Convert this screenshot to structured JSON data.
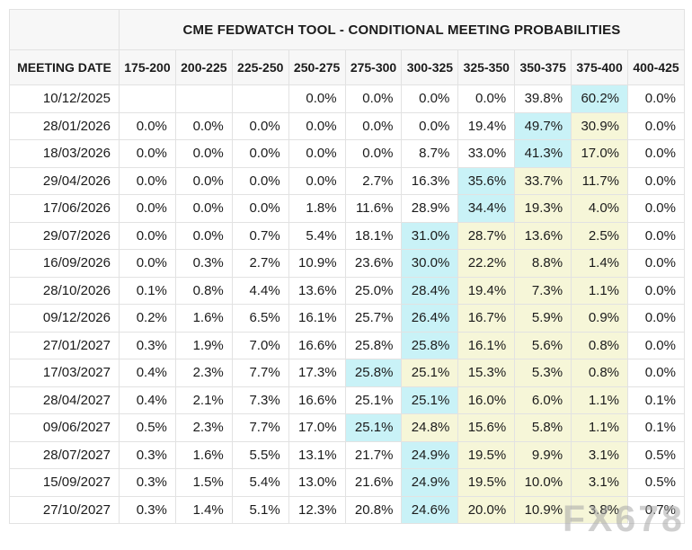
{
  "chart_data": {
    "type": "table",
    "title": "CME FEDWATCH TOOL - CONDITIONAL MEETING PROBABILITIES",
    "columns": [
      "MEETING DATE",
      "175-200",
      "200-225",
      "225-250",
      "250-275",
      "275-300",
      "300-325",
      "325-350",
      "350-375",
      "375-400",
      "400-425"
    ],
    "rows": [
      {
        "date": "10/12/2025",
        "values": [
          "",
          "",
          "",
          "0.0%",
          "0.0%",
          "0.0%",
          "0.0%",
          "39.8%",
          "60.2%",
          "0.0%"
        ],
        "cyan": [
          8
        ],
        "yellow": []
      },
      {
        "date": "28/01/2026",
        "values": [
          "0.0%",
          "0.0%",
          "0.0%",
          "0.0%",
          "0.0%",
          "0.0%",
          "19.4%",
          "49.7%",
          "30.9%",
          "0.0%"
        ],
        "cyan": [
          7
        ],
        "yellow": [
          8
        ]
      },
      {
        "date": "18/03/2026",
        "values": [
          "0.0%",
          "0.0%",
          "0.0%",
          "0.0%",
          "0.0%",
          "8.7%",
          "33.0%",
          "41.3%",
          "17.0%",
          "0.0%"
        ],
        "cyan": [
          7
        ],
        "yellow": [
          8
        ]
      },
      {
        "date": "29/04/2026",
        "values": [
          "0.0%",
          "0.0%",
          "0.0%",
          "0.0%",
          "2.7%",
          "16.3%",
          "35.6%",
          "33.7%",
          "11.7%",
          "0.0%"
        ],
        "cyan": [
          6
        ],
        "yellow": [
          7,
          8
        ]
      },
      {
        "date": "17/06/2026",
        "values": [
          "0.0%",
          "0.0%",
          "0.0%",
          "1.8%",
          "11.6%",
          "28.9%",
          "34.4%",
          "19.3%",
          "4.0%",
          "0.0%"
        ],
        "cyan": [
          6
        ],
        "yellow": [
          7,
          8
        ]
      },
      {
        "date": "29/07/2026",
        "values": [
          "0.0%",
          "0.0%",
          "0.7%",
          "5.4%",
          "18.1%",
          "31.0%",
          "28.7%",
          "13.6%",
          "2.5%",
          "0.0%"
        ],
        "cyan": [
          5
        ],
        "yellow": [
          6,
          7,
          8
        ]
      },
      {
        "date": "16/09/2026",
        "values": [
          "0.0%",
          "0.3%",
          "2.7%",
          "10.9%",
          "23.6%",
          "30.0%",
          "22.2%",
          "8.8%",
          "1.4%",
          "0.0%"
        ],
        "cyan": [
          5
        ],
        "yellow": [
          6,
          7,
          8
        ]
      },
      {
        "date": "28/10/2026",
        "values": [
          "0.1%",
          "0.8%",
          "4.4%",
          "13.6%",
          "25.0%",
          "28.4%",
          "19.4%",
          "7.3%",
          "1.1%",
          "0.0%"
        ],
        "cyan": [
          5
        ],
        "yellow": [
          6,
          7,
          8
        ]
      },
      {
        "date": "09/12/2026",
        "values": [
          "0.2%",
          "1.6%",
          "6.5%",
          "16.1%",
          "25.7%",
          "26.4%",
          "16.7%",
          "5.9%",
          "0.9%",
          "0.0%"
        ],
        "cyan": [
          5
        ],
        "yellow": [
          6,
          7,
          8
        ]
      },
      {
        "date": "27/01/2027",
        "values": [
          "0.3%",
          "1.9%",
          "7.0%",
          "16.6%",
          "25.8%",
          "25.8%",
          "16.1%",
          "5.6%",
          "0.8%",
          "0.0%"
        ],
        "cyan": [
          5
        ],
        "yellow": [
          6,
          7,
          8
        ]
      },
      {
        "date": "17/03/2027",
        "values": [
          "0.4%",
          "2.3%",
          "7.7%",
          "17.3%",
          "25.8%",
          "25.1%",
          "15.3%",
          "5.3%",
          "0.8%",
          "0.0%"
        ],
        "cyan": [
          4
        ],
        "yellow": [
          5,
          6,
          7,
          8
        ]
      },
      {
        "date": "28/04/2027",
        "values": [
          "0.4%",
          "2.1%",
          "7.3%",
          "16.6%",
          "25.1%",
          "25.1%",
          "16.0%",
          "6.0%",
          "1.1%",
          "0.1%"
        ],
        "cyan": [
          5
        ],
        "yellow": [
          6,
          7,
          8
        ]
      },
      {
        "date": "09/06/2027",
        "values": [
          "0.5%",
          "2.3%",
          "7.7%",
          "17.0%",
          "25.1%",
          "24.8%",
          "15.6%",
          "5.8%",
          "1.1%",
          "0.1%"
        ],
        "cyan": [
          4
        ],
        "yellow": [
          5,
          6,
          7,
          8
        ]
      },
      {
        "date": "28/07/2027",
        "values": [
          "0.3%",
          "1.6%",
          "5.5%",
          "13.1%",
          "21.7%",
          "24.9%",
          "19.5%",
          "9.9%",
          "3.1%",
          "0.5%"
        ],
        "cyan": [
          5
        ],
        "yellow": [
          6,
          7,
          8
        ]
      },
      {
        "date": "15/09/2027",
        "values": [
          "0.3%",
          "1.5%",
          "5.4%",
          "13.0%",
          "21.6%",
          "24.9%",
          "19.5%",
          "10.0%",
          "3.1%",
          "0.5%"
        ],
        "cyan": [
          5
        ],
        "yellow": [
          6,
          7,
          8
        ]
      },
      {
        "date": "27/10/2027",
        "values": [
          "0.3%",
          "1.4%",
          "5.1%",
          "12.3%",
          "20.8%",
          "24.6%",
          "20.0%",
          "10.9%",
          "3.8%",
          "0.7%"
        ],
        "cyan": [
          5
        ],
        "yellow": [
          6,
          7,
          8
        ]
      }
    ],
    "layout": {
      "grid": true,
      "first_column_header": "MEETING DATE",
      "cyan_highlight_hex": "#c9f2f7",
      "yellow_highlight_hex": "#f6f6d8"
    }
  },
  "watermark": "FX678",
  "colors": {
    "header_bg": "#f7f7f7",
    "border": "#e2e2e2",
    "cell_bg": "#ffffff",
    "text": "#1b1b1b",
    "cyan_highlight": "#c9f2f7",
    "yellow_highlight": "#f6f6d8",
    "watermark_gray": "#a8a8a8"
  }
}
